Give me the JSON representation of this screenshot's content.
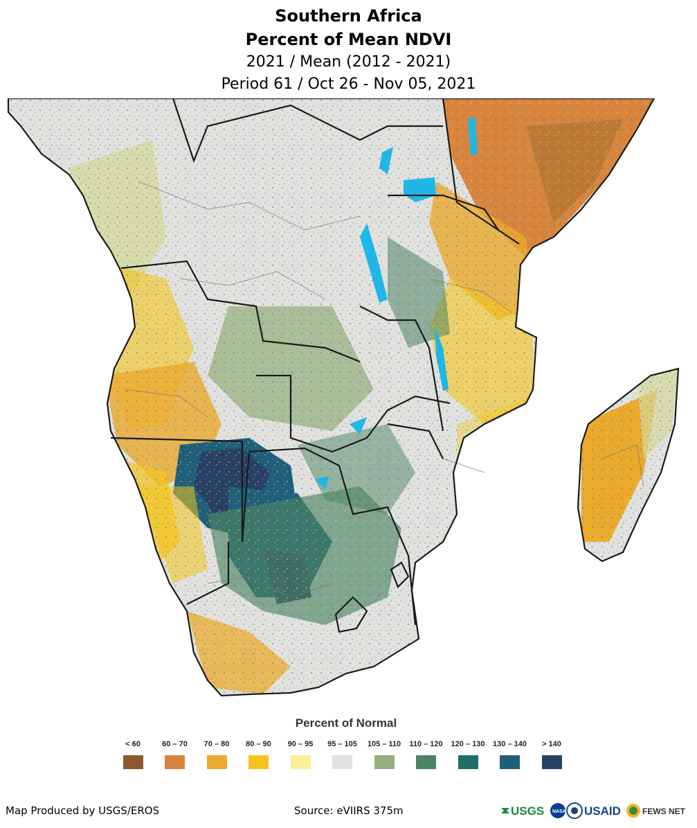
{
  "header": {
    "region": "Southern Africa",
    "product": "Percent of Mean NDVI",
    "comparison": "2021 / Mean (2012 - 2021)",
    "period": "Period 61 / Oct 26 - Nov 05, 2021"
  },
  "legend": {
    "title": "Percent of Normal",
    "classes": [
      {
        "label": "< 60",
        "color": "#8a5a2e"
      },
      {
        "label": "60 – 70",
        "color": "#d9843f"
      },
      {
        "label": "70 – 80",
        "color": "#eba92e"
      },
      {
        "label": "80 – 90",
        "color": "#f5c51b"
      },
      {
        "label": "90 – 95",
        "color": "#fbf098"
      },
      {
        "label": "95 – 105",
        "color": "#e1e1e1"
      },
      {
        "label": "105 – 110",
        "color": "#93ae7c"
      },
      {
        "label": "110 – 120",
        "color": "#4c8466"
      },
      {
        "label": "120 – 130",
        "color": "#1e6e6a"
      },
      {
        "label": "130 – 140",
        "color": "#1f5f7c"
      },
      {
        "label": "> 140",
        "color": "#283f66"
      }
    ]
  },
  "map": {
    "water_color": "#1fb7e8",
    "border_color": "#1a1a1a",
    "admin_border_color": "#777777"
  },
  "footer": {
    "credit": "Map Produced by USGS/EROS",
    "source": "Source: eVIIRS 375m",
    "logos": [
      "USGS",
      "NASA",
      "USAID",
      "FEWS NET"
    ]
  }
}
